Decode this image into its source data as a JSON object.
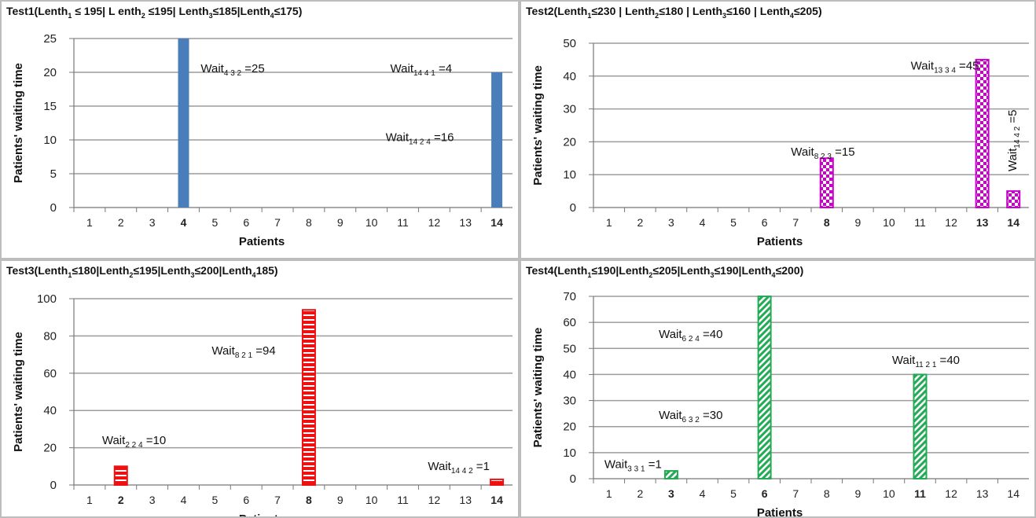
{
  "chart_data": [
    {
      "type": "bar",
      "title_parts": [
        [
          "Test1(Lenth",
          ""
        ],
        [
          "1",
          "sub"
        ],
        [
          " ≤ 195| L enth",
          ""
        ],
        [
          "2",
          "sub"
        ],
        [
          " ≤195| Lenth",
          ""
        ],
        [
          "3",
          "sub"
        ],
        [
          "≤185|Lenth",
          ""
        ],
        [
          "4",
          "sub"
        ],
        [
          "≤175)",
          ""
        ]
      ],
      "xlabel": "Patients",
      "ylabel": "Patients' waiting time",
      "categories": [
        "1",
        "2",
        "3",
        "4",
        "5",
        "6",
        "7",
        "8",
        "9",
        "10",
        "11",
        "12",
        "13",
        "14"
      ],
      "values": [
        0,
        0,
        0,
        25,
        0,
        0,
        0,
        0,
        0,
        0,
        0,
        0,
        0,
        20
      ],
      "ylim": [
        0,
        25
      ],
      "yticks": [
        0,
        5,
        10,
        15,
        20,
        25
      ],
      "color": "#4a7ebb",
      "pattern": "solid",
      "grid": true,
      "annotations": [
        {
          "text": "Wait",
          "sub": "4 3 2",
          "value": " =25",
          "x": 4.55,
          "y": 20
        },
        {
          "text": "Wait",
          "sub": "14 4 1",
          "value": " =4",
          "x": 10.6,
          "y": 20
        },
        {
          "text": "Wait",
          "sub": "14 2 4",
          "value": " =16",
          "x": 10.45,
          "y": 9.8
        }
      ]
    },
    {
      "type": "bar",
      "title_parts": [
        [
          "Test2(Lenth",
          ""
        ],
        [
          "1",
          "sub"
        ],
        [
          "≤230  | Lenth",
          ""
        ],
        [
          "2",
          "sub"
        ],
        [
          "≤180 | Lenth",
          ""
        ],
        [
          "3",
          "sub"
        ],
        [
          "≤160 | Lenth",
          ""
        ],
        [
          "4",
          "sub"
        ],
        [
          "≤205)",
          ""
        ]
      ],
      "xlabel": "Patients",
      "ylabel": "Patients' waiting time",
      "categories": [
        "1",
        "2",
        "3",
        "4",
        "5",
        "6",
        "7",
        "8",
        "9",
        "10",
        "11",
        "12",
        "13",
        "14"
      ],
      "values": [
        0,
        0,
        0,
        0,
        0,
        0,
        0,
        15,
        0,
        0,
        0,
        0,
        45,
        5
      ],
      "ylim": [
        0,
        50
      ],
      "yticks": [
        0,
        10,
        20,
        30,
        40,
        50
      ],
      "color": "#cc00cc",
      "pattern": "checker",
      "grid": true,
      "annotations": [
        {
          "text": "Wait",
          "sub": "8 2 3",
          "value": " =15",
          "x": 6.85,
          "y": 15.8
        },
        {
          "text": "Wait",
          "sub": "13 3 4",
          "value": " =45",
          "x": 10.7,
          "y": 42
        },
        {
          "text": "Wait",
          "sub": "14 4 2",
          "value": " =5",
          "x": 14.1,
          "y": 11,
          "rotate": true
        }
      ]
    },
    {
      "type": "bar",
      "title_parts": [
        [
          "Test3(Lenth",
          ""
        ],
        [
          "1",
          "sub"
        ],
        [
          "≤180|Lenth",
          ""
        ],
        [
          "2",
          "sub"
        ],
        [
          "≤195|Lenth",
          ""
        ],
        [
          "3",
          "sub"
        ],
        [
          "≤200|Lenth",
          ""
        ],
        [
          "4",
          "sub"
        ],
        [
          "185)",
          ""
        ]
      ],
      "xlabel": "Patients",
      "ylabel": "Patients' waiting time",
      "categories": [
        "1",
        "2",
        "3",
        "4",
        "5",
        "6",
        "7",
        "8",
        "9",
        "10",
        "11",
        "12",
        "13",
        "14"
      ],
      "values": [
        0,
        10,
        0,
        0,
        0,
        0,
        0,
        94,
        0,
        0,
        0,
        0,
        0,
        3
      ],
      "ylim": [
        0,
        100
      ],
      "yticks": [
        0,
        20,
        40,
        60,
        80,
        100
      ],
      "color": "#ee1111",
      "pattern": "hlines",
      "grid": true,
      "annotations": [
        {
          "text": "Wait",
          "sub": "2 2 4",
          "value": " =10",
          "x": 1.4,
          "y": 22
        },
        {
          "text": "Wait",
          "sub": "8 2 1",
          "value": " =94",
          "x": 4.9,
          "y": 70
        },
        {
          "text": "Wait",
          "sub": "14 4 2",
          "value": " =1",
          "x": 11.8,
          "y": 8
        }
      ]
    },
    {
      "type": "bar",
      "title_parts": [
        [
          "Test4(Lenth",
          ""
        ],
        [
          "1",
          "sub"
        ],
        [
          "≤190|Lenth",
          ""
        ],
        [
          "2",
          "sub"
        ],
        [
          "≤205|Lenth",
          ""
        ],
        [
          "3",
          "sub"
        ],
        [
          "≤190|Lenth",
          ""
        ],
        [
          "4",
          "sub"
        ],
        [
          "≤200)",
          ""
        ]
      ],
      "xlabel": "Patients",
      "ylabel": "Patients' waiting time",
      "categories": [
        "1",
        "2",
        "3",
        "4",
        "5",
        "6",
        "7",
        "8",
        "9",
        "10",
        "11",
        "12",
        "13",
        "14"
      ],
      "values": [
        0,
        0,
        3,
        0,
        0,
        70,
        0,
        0,
        0,
        0,
        40,
        0,
        0,
        0
      ],
      "ylim": [
        0,
        70
      ],
      "yticks": [
        0,
        10,
        20,
        30,
        40,
        50,
        60,
        70
      ],
      "color": "#22aa55",
      "pattern": "diagonal",
      "grid": true,
      "annotations": [
        {
          "text": "Wait",
          "sub": "6 2 4",
          "value": " =40",
          "x": 2.6,
          "y": 54
        },
        {
          "text": "Wait",
          "sub": "11 2 1",
          "value": " =40",
          "x": 10.1,
          "y": 44
        },
        {
          "text": "Wait",
          "sub": "6 3 2",
          "value": " =30",
          "x": 2.6,
          "y": 23
        },
        {
          "text": "Wait",
          "sub": "3 3 1",
          "value": " =1",
          "x": 0.85,
          "y": 4
        }
      ]
    }
  ]
}
